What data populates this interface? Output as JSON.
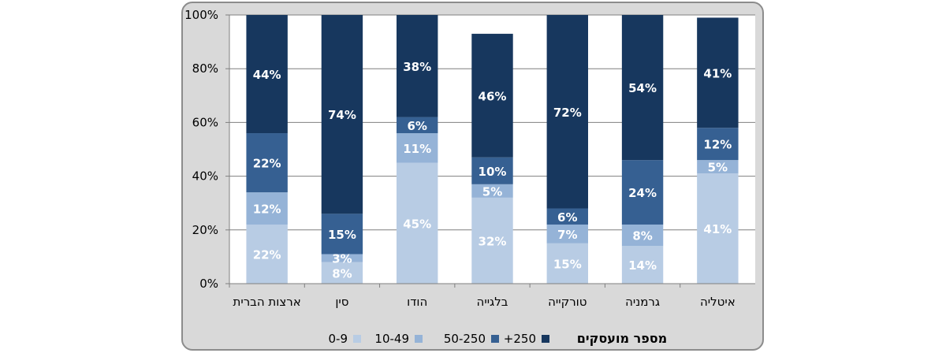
{
  "chart_data": {
    "type": "bar",
    "stacked": true,
    "orientation": "vertical",
    "categories": [
      "ארצות הברית",
      "סין",
      "הודו",
      "בלגייה",
      "טורקייה",
      "גרמניה",
      "איטליה"
    ],
    "series": [
      {
        "name": "0-9",
        "color": "#b8cce4",
        "values": [
          22,
          8,
          45,
          32,
          15,
          14,
          41
        ],
        "labels": [
          "22%",
          "8%",
          "45%",
          "32%",
          "15%",
          "14%",
          "41%"
        ]
      },
      {
        "name": "10-49",
        "color": "#95b3d7",
        "values": [
          12,
          3,
          11,
          5,
          7,
          8,
          5
        ],
        "labels": [
          "12%",
          "3%",
          "11%",
          "5%",
          "7%",
          "8%",
          "5%"
        ]
      },
      {
        "name": "50-250",
        "color": "#366092",
        "values": [
          22,
          15,
          6,
          10,
          6,
          24,
          12
        ],
        "labels": [
          "22%",
          "15%",
          "6%",
          "10%",
          "6%",
          "24%",
          "12%"
        ]
      },
      {
        "name": "+250",
        "color": "#17375e",
        "values": [
          44,
          74,
          38,
          46,
          72,
          54,
          41
        ],
        "labels": [
          "44%",
          "74%",
          "38%",
          "46%",
          "72%",
          "54%",
          "41%"
        ]
      }
    ],
    "ylim": [
      0,
      100
    ],
    "yticks": [
      "0%",
      "20%",
      "40%",
      "60%",
      "80%",
      "100%"
    ],
    "grid": true,
    "legend": {
      "title": "מספר מועסקים",
      "placement": "bottom"
    }
  }
}
